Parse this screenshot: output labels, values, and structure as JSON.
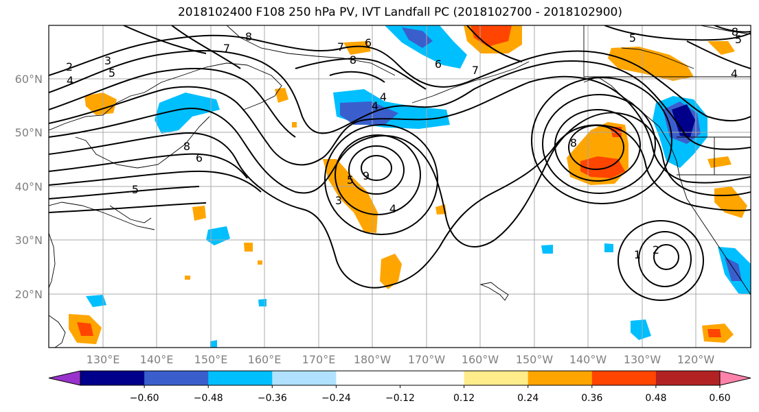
{
  "title": "2018102400 F108 250 hPa PV, IVT Landfall PC (2018102700 - 2018102900)",
  "lat_labels": [
    "60°N",
    "50°N",
    "40°N",
    "30°N",
    "20°N"
  ],
  "lon_labels": [
    "130°E",
    "140°E",
    "150°E",
    "160°E",
    "170°E",
    "180°W",
    "170°W",
    "160°W",
    "150°W",
    "140°W",
    "130°W",
    "120°W"
  ],
  "colorbar": {
    "colors": [
      "#9932cc",
      "#00008b",
      "#3a5fcd",
      "#00bfff",
      "#b0e2ff",
      "#ffffff",
      "#ffffff",
      "#ffec8b",
      "#ffa500",
      "#ff4500",
      "#b22222",
      "#ff82ab"
    ],
    "tick_labels": [
      "−0.60",
      "−0.48",
      "−0.36",
      "−0.24",
      "−0.12",
      "0.12",
      "0.24",
      "0.36",
      "0.48",
      "0.60"
    ]
  },
  "contour_labels": [
    "2",
    "3",
    "4",
    "5",
    "7",
    "8",
    "8",
    "6",
    "5",
    "7",
    "6",
    "8",
    "6",
    "7",
    "3",
    "4",
    "9",
    "5",
    "4",
    "4",
    "8",
    "5",
    "4",
    "5",
    "1",
    "2",
    "8"
  ]
}
